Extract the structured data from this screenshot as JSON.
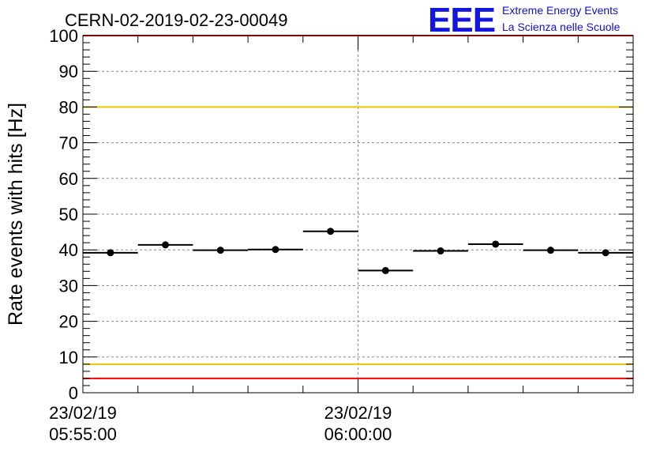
{
  "header": {
    "run_title": "CERN-02-2019-02-23-00049",
    "logo_mark": "EEE",
    "logo_line1": "Extreme Energy Events",
    "logo_line2": "La Scienza nelle Scuole"
  },
  "chart_data": {
    "type": "scatter",
    "title": "CERN-02-2019-02-23-00049",
    "ylabel": "Rate events with hits [Hz]",
    "xlabel": "",
    "ylim": [
      0,
      100
    ],
    "y_ticks": [
      "0",
      "10",
      "20",
      "30",
      "40",
      "50",
      "60",
      "70",
      "80",
      "90",
      "100"
    ],
    "x_tick_labels": [
      {
        "date": "23/02/19",
        "time": "05:55:00"
      },
      {
        "date": "23/02/19",
        "time": "06:00:00"
      }
    ],
    "grid": true,
    "bin_width_minutes": 1,
    "series": [
      {
        "x": [
          "05:55:30",
          "05:56:30",
          "05:57:30",
          "05:58:30",
          "05:59:30",
          "06:00:30",
          "06:01:30",
          "06:02:30",
          "06:03:30",
          "06:04:30"
        ],
        "y": [
          39.2,
          41.4,
          39.9,
          40.1,
          45.2,
          34.2,
          39.7,
          41.6,
          39.9,
          39.2
        ]
      }
    ],
    "reference_lines": [
      {
        "y": 100,
        "color": "#ff0000"
      },
      {
        "y": 80,
        "color": "#e8c800"
      },
      {
        "y": 8,
        "color": "#e8c800"
      },
      {
        "y": 4,
        "color": "#ff0000"
      }
    ],
    "colors": {
      "points": "#000000",
      "grid": "#888888"
    }
  }
}
